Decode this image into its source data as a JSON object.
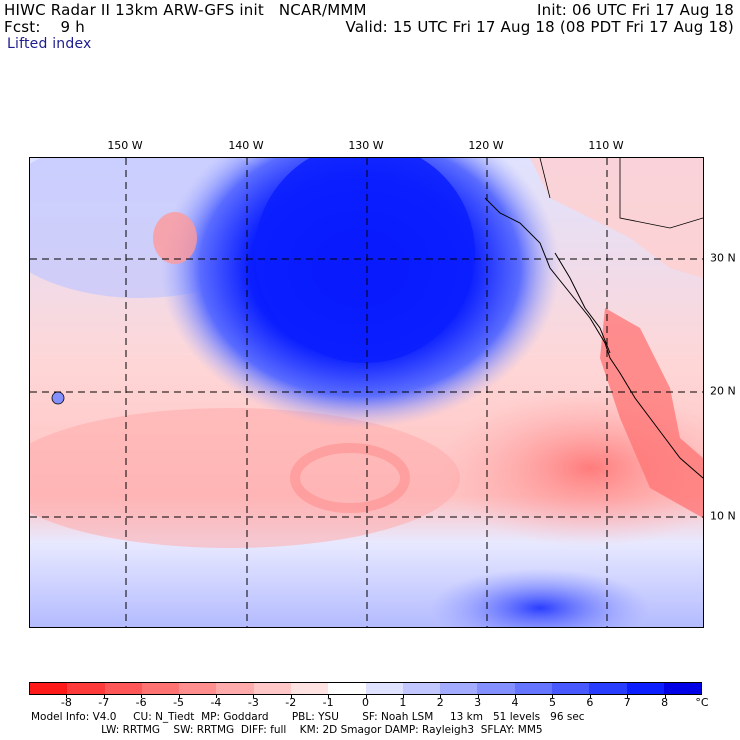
{
  "header": {
    "line1_left": "HIWC Radar II 13km ARW-GFS init   NCAR/MMM",
    "line1_right": "Init: 06 UTC Fri 17 Aug 18",
    "line2_left": "Fcst:    9 h",
    "line2_right": "Valid: 15 UTC Fri 17 Aug 18 (08 PDT Fri 17 Aug 18)",
    "field": "Lifted index"
  },
  "map": {
    "lon_labels": [
      "150 W",
      "140 W",
      "130 W",
      "120 W",
      "110 W"
    ],
    "lat_labels": [
      "30 N",
      "20 N",
      "10 N"
    ]
  },
  "colorbar": {
    "ticks": [
      "-8",
      "-7",
      "-6",
      "-5",
      "-4",
      "-3",
      "-2",
      "-1",
      "0",
      "1",
      "2",
      "3",
      "4",
      "5",
      "6",
      "7",
      "8"
    ],
    "unit": "°C",
    "colors": [
      "#ff1a1a",
      "#ff3a3a",
      "#ff5757",
      "#ff7373",
      "#ff8f8f",
      "#ffabab",
      "#ffc7c7",
      "#ffe3e3",
      "#ffffff",
      "#e0e3ff",
      "#c2c8ff",
      "#a3acff",
      "#8590ff",
      "#6675ff",
      "#4759ff",
      "#293dff",
      "#0a1eff",
      "#0000e6"
    ]
  },
  "footer": {
    "line1": "Model Info: V4.0     CU: N_Tiedt  MP: Goddard       PBL: YSU       SF: Noah LSM     13 km   51 levels   96 sec",
    "line2": "                     LW: RRTMG    SW: RRTMG  DIFF: full    KM: 2D Smagor DAMP: Rayleigh3  SFLAY: MM5"
  }
}
